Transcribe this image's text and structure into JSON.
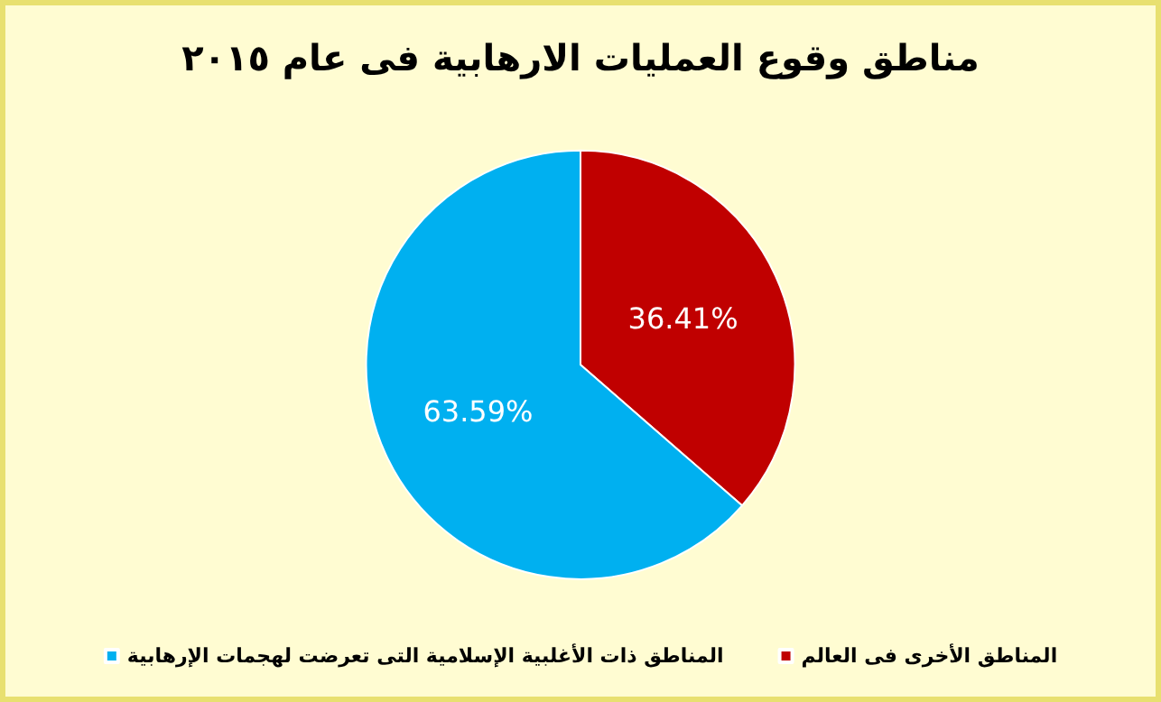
{
  "chart_data": {
    "type": "pie",
    "title": "مناطق وقوع العمليات الارهابية فى عام ٢٠١٥",
    "categories": [
      "المناطق الأخرى فى العالم",
      "المناطق ذات الأغلبية الإسلامية التى تعرضت لهجمات الإرهابية"
    ],
    "values": [
      36.41,
      63.59
    ],
    "colors": [
      "#c00000",
      "#00b0f0"
    ],
    "value_labels": [
      "36.41%",
      "63.59%"
    ],
    "legend": "bottom"
  }
}
